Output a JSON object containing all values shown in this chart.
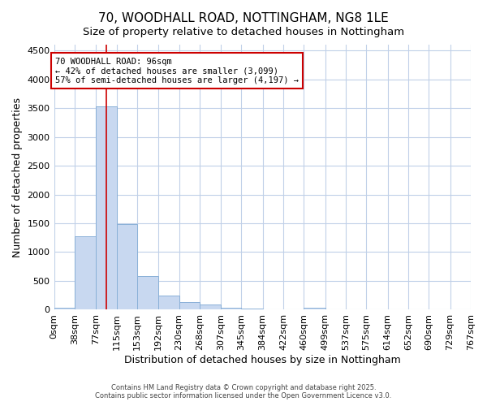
{
  "title_line1": "70, WOODHALL ROAD, NOTTINGHAM, NG8 1LE",
  "title_line2": "Size of property relative to detached houses in Nottingham",
  "xlabel": "Distribution of detached houses by size in Nottingham",
  "ylabel": "Number of detached properties",
  "bar_color": "#c8d8f0",
  "bar_edge_color": "#8ab0d8",
  "background_color": "#ffffff",
  "plot_bg_color": "#ffffff",
  "grid_color": "#c0d0e8",
  "vline_color": "#cc0000",
  "vline_x": 96,
  "annotation_text": "70 WOODHALL ROAD: 96sqm\n← 42% of detached houses are smaller (3,099)\n57% of semi-detached houses are larger (4,197) →",
  "annotation_box_color": "#cc0000",
  "footer_line1": "Contains HM Land Registry data © Crown copyright and database right 2025.",
  "footer_line2": "Contains public sector information licensed under the Open Government Licence v3.0.",
  "bin_edges": [
    0,
    38,
    77,
    115,
    153,
    192,
    230,
    268,
    307,
    345,
    384,
    422,
    460,
    499,
    537,
    575,
    614,
    652,
    690,
    729,
    767
  ],
  "bin_counts": [
    30,
    1280,
    3530,
    1490,
    590,
    245,
    135,
    85,
    30,
    15,
    5,
    3,
    40,
    0,
    0,
    0,
    0,
    0,
    0,
    0
  ],
  "ylim": [
    0,
    4600
  ],
  "yticks": [
    0,
    500,
    1000,
    1500,
    2000,
    2500,
    3000,
    3500,
    4000,
    4500
  ],
  "title_fontsize": 11,
  "subtitle_fontsize": 9.5,
  "axis_label_fontsize": 9,
  "tick_fontsize": 8,
  "annotation_fontsize": 7.5,
  "footer_fontsize": 6
}
